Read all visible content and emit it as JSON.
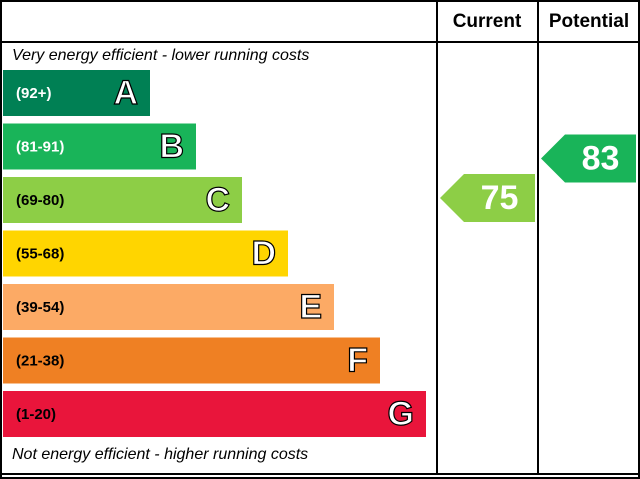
{
  "chart_data": {
    "type": "rating",
    "columns": [
      "Current",
      "Potential"
    ],
    "top_label": "Very energy efficient - lower running costs",
    "bottom_label": "Not energy efficient - higher running costs",
    "bands": [
      {
        "letter": "A",
        "range": "(92+)",
        "color": "#008054"
      },
      {
        "letter": "B",
        "range": "(81-91)",
        "color": "#19b459"
      },
      {
        "letter": "C",
        "range": "(69-80)",
        "color": "#8dce46"
      },
      {
        "letter": "D",
        "range": "(55-68)",
        "color": "#ffd500"
      },
      {
        "letter": "E",
        "range": "(39-54)",
        "color": "#fcaa65"
      },
      {
        "letter": "F",
        "range": "(21-38)",
        "color": "#ef8023"
      },
      {
        "letter": "G",
        "range": "(1-20)",
        "color": "#e9153b"
      }
    ],
    "current": 75,
    "potential": 83
  }
}
